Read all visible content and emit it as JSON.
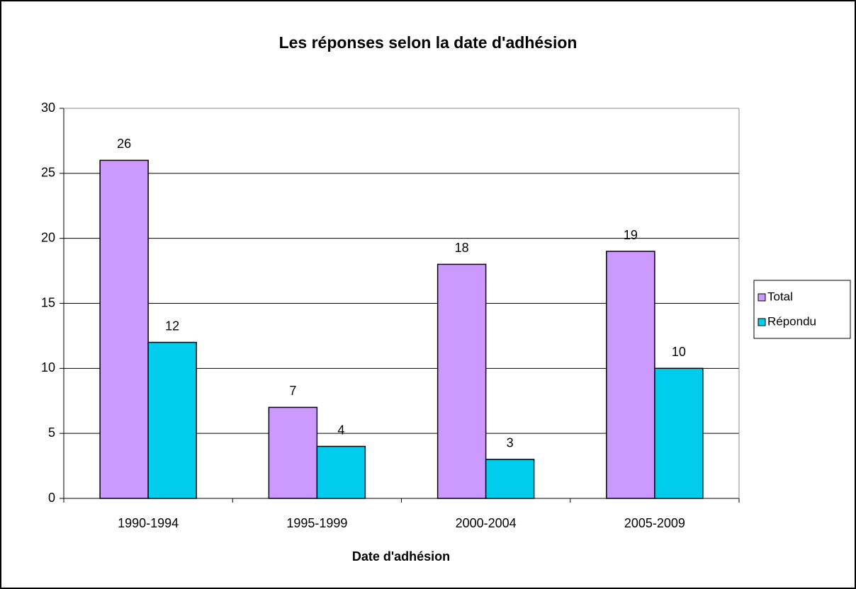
{
  "chart_data": {
    "type": "bar",
    "title": "Les réponses selon la date d'adhésion",
    "x_label": "Date d'adhésion",
    "categories": [
      "1990-1994",
      "1995-1999",
      "2000-2004",
      "2005-2009"
    ],
    "series": [
      {
        "name": "Total",
        "color": "#cc99ff",
        "values": [
          26,
          7,
          18,
          19
        ]
      },
      {
        "name": "Répondu",
        "color": "#00ccee",
        "values": [
          12,
          4,
          3,
          10
        ]
      }
    ],
    "ylim": [
      0,
      30
    ],
    "yticks": [
      0,
      5,
      10,
      15,
      20,
      25,
      30
    ],
    "grid": true,
    "legend": "right"
  }
}
